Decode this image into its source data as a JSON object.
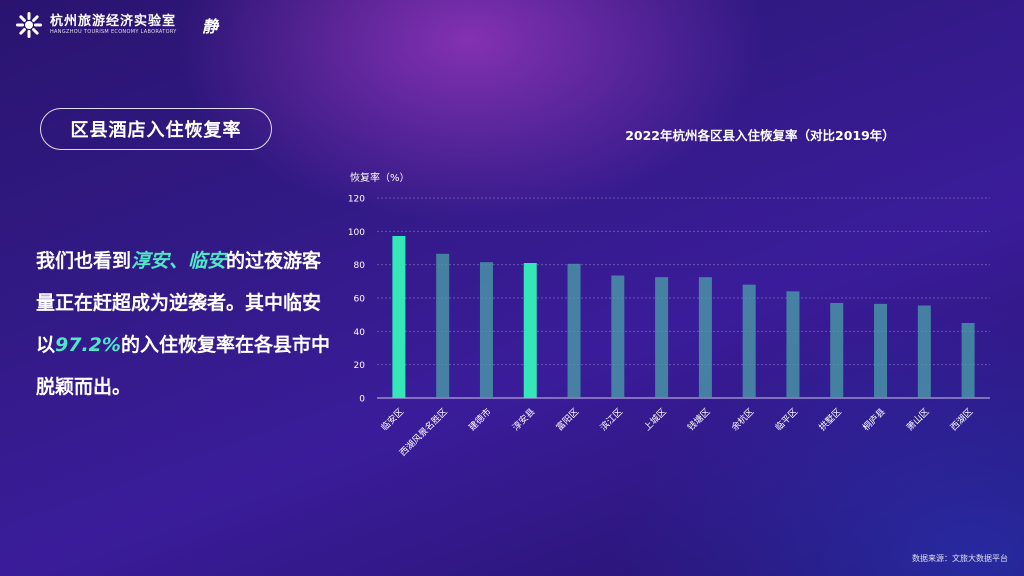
{
  "header": {
    "logo_cn": "杭州旅游经济实验室",
    "logo_en": "HANGZHOU TOURISM ECONOMY LABORATORY",
    "brand_char": "静"
  },
  "section": {
    "title": "区县酒店入住恢复率"
  },
  "paragraph": {
    "part1": "我们也看到",
    "highlight1": "淳安、临安",
    "part2": "的过夜游客量正在赶超成为逆袭者。其中临安以",
    "highlight2": "97.2%",
    "part3": "的入住恢复率在各县市中脱颖而出。"
  },
  "source": "数据来源：文旅大数据平台",
  "colors": {
    "highlight_bar": "#35e6b8",
    "normal_bar": "#4a9aa6",
    "highlight_text": "#4fe7c6"
  },
  "chart_data": {
    "type": "bar",
    "title": "2022年杭州各区县入住恢复率（对比2019年）",
    "ylabel": "恢复率（%）",
    "xlabel": "",
    "ylim": [
      0,
      120
    ],
    "yticks": [
      0,
      20,
      40,
      60,
      80,
      100,
      120
    ],
    "grid": true,
    "categories": [
      "临安区",
      "西湖风景名胜区",
      "建德市",
      "淳安县",
      "富阳区",
      "滨江区",
      "上城区",
      "钱塘区",
      "余杭区",
      "临平区",
      "拱墅区",
      "桐庐县",
      "萧山区",
      "西湖区"
    ],
    "values": [
      97.2,
      86.5,
      81.5,
      81,
      80.5,
      73.5,
      72.5,
      72.5,
      68,
      64,
      57,
      56.5,
      55.5,
      45
    ],
    "highlighted": [
      "临安区",
      "淳安县"
    ]
  }
}
